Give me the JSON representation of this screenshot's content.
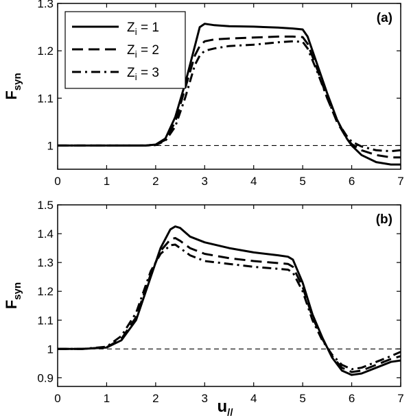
{
  "chart_data": [
    {
      "type": "line",
      "panel_label": "(a)",
      "ylabel": "F",
      "ylabel_sub": "syn",
      "xlim": [
        0,
        7
      ],
      "ylim": [
        0.95,
        1.3
      ],
      "xticks": [
        0,
        1,
        2,
        3,
        4,
        5,
        6,
        7
      ],
      "yticks": [
        1,
        1.1,
        1.2,
        1.3
      ],
      "ytick_labels": [
        "1",
        "1.1",
        "1.2",
        "1.3"
      ],
      "reference_line": 1,
      "legend": {
        "placement": "top-left",
        "entries": [
          {
            "prefix": "Z",
            "sub": "i",
            "suffix": " = 1",
            "style": "solid"
          },
          {
            "prefix": "Z",
            "sub": "i",
            "suffix": " = 2",
            "style": "dashed"
          },
          {
            "prefix": "Z",
            "sub": "i",
            "suffix": " = 3",
            "style": "dashdot"
          }
        ]
      },
      "series": [
        {
          "style": "solid",
          "x": [
            0,
            1,
            1.8,
            2.0,
            2.2,
            2.4,
            2.6,
            2.8,
            2.9,
            3.0,
            3.2,
            3.5,
            4.0,
            4.5,
            4.8,
            5.0,
            5.1,
            5.3,
            5.5,
            5.7,
            5.9,
            6.0,
            6.2,
            6.5,
            6.8,
            7.0
          ],
          "y": [
            1.0,
            1.0,
            1.0,
            1.002,
            1.015,
            1.06,
            1.13,
            1.21,
            1.25,
            1.257,
            1.254,
            1.252,
            1.251,
            1.249,
            1.247,
            1.245,
            1.23,
            1.17,
            1.11,
            1.055,
            1.015,
            1.0,
            0.98,
            0.965,
            0.96,
            0.96
          ]
        },
        {
          "style": "dashed",
          "x": [
            0,
            1,
            1.8,
            2.0,
            2.2,
            2.4,
            2.6,
            2.8,
            2.9,
            3.0,
            3.2,
            3.5,
            4.0,
            4.5,
            4.8,
            5.0,
            5.1,
            5.3,
            5.5,
            5.7,
            5.9,
            6.0,
            6.2,
            6.5,
            6.8,
            7.0
          ],
          "y": [
            1.0,
            1.0,
            1.0,
            1.002,
            1.012,
            1.05,
            1.12,
            1.19,
            1.21,
            1.22,
            1.224,
            1.226,
            1.228,
            1.23,
            1.23,
            1.229,
            1.215,
            1.16,
            1.1,
            1.05,
            1.015,
            1.003,
            0.99,
            0.98,
            0.975,
            0.975
          ]
        },
        {
          "style": "dashdot",
          "x": [
            0,
            1,
            1.8,
            2.0,
            2.2,
            2.4,
            2.6,
            2.8,
            2.9,
            3.0,
            3.2,
            3.5,
            4.0,
            4.5,
            4.8,
            5.0,
            5.1,
            5.3,
            5.5,
            5.7,
            5.9,
            6.0,
            6.2,
            6.5,
            6.8,
            7.0
          ],
          "y": [
            1.0,
            1.0,
            1.0,
            1.001,
            1.01,
            1.04,
            1.1,
            1.17,
            1.19,
            1.2,
            1.205,
            1.21,
            1.213,
            1.218,
            1.22,
            1.219,
            1.205,
            1.155,
            1.1,
            1.052,
            1.02,
            1.008,
            0.998,
            0.99,
            0.988,
            0.99
          ]
        }
      ]
    },
    {
      "type": "line",
      "panel_label": "(b)",
      "ylabel": "F",
      "ylabel_sub": "syn",
      "xlabel": "u",
      "xlabel_sub": "//",
      "xlim": [
        0,
        7
      ],
      "ylim": [
        0.87,
        1.5
      ],
      "xticks": [
        0,
        1,
        2,
        3,
        4,
        5,
        6,
        7
      ],
      "yticks": [
        0.9,
        1,
        1.1,
        1.2,
        1.3,
        1.4,
        1.5
      ],
      "ytick_labels": [
        "0.9",
        "1",
        "1.1",
        "1.2",
        "1.3",
        "1.4",
        "1.5"
      ],
      "reference_line": 1,
      "series": [
        {
          "style": "solid",
          "x": [
            0,
            0.5,
            1.0,
            1.3,
            1.6,
            1.9,
            2.1,
            2.3,
            2.4,
            2.5,
            2.7,
            3.0,
            3.5,
            4.0,
            4.5,
            4.7,
            4.8,
            5.0,
            5.2,
            5.4,
            5.6,
            5.8,
            6.0,
            6.2,
            6.5,
            6.8,
            7.0
          ],
          "y": [
            1.0,
            1.0,
            1.005,
            1.03,
            1.1,
            1.25,
            1.35,
            1.415,
            1.425,
            1.42,
            1.39,
            1.37,
            1.35,
            1.335,
            1.325,
            1.32,
            1.31,
            1.23,
            1.12,
            1.04,
            0.97,
            0.925,
            0.91,
            0.915,
            0.935,
            0.955,
            0.96
          ]
        },
        {
          "style": "dashed",
          "x": [
            0,
            0.5,
            1.0,
            1.3,
            1.6,
            1.9,
            2.1,
            2.3,
            2.4,
            2.5,
            2.7,
            3.0,
            3.5,
            4.0,
            4.5,
            4.7,
            4.8,
            5.0,
            5.2,
            5.4,
            5.6,
            5.8,
            6.0,
            6.2,
            6.5,
            6.8,
            7.0
          ],
          "y": [
            1.0,
            1.0,
            1.006,
            1.035,
            1.11,
            1.26,
            1.34,
            1.38,
            1.385,
            1.375,
            1.35,
            1.33,
            1.315,
            1.305,
            1.298,
            1.295,
            1.285,
            1.215,
            1.11,
            1.035,
            0.975,
            0.935,
            0.92,
            0.925,
            0.945,
            0.965,
            0.975
          ]
        },
        {
          "style": "dashdot",
          "x": [
            0,
            0.5,
            1.0,
            1.3,
            1.6,
            1.9,
            2.1,
            2.3,
            2.4,
            2.5,
            2.7,
            3.0,
            3.5,
            4.0,
            4.5,
            4.7,
            4.8,
            5.0,
            5.2,
            5.4,
            5.6,
            5.8,
            6.0,
            6.2,
            6.5,
            6.8,
            7.0
          ],
          "y": [
            1.0,
            1.0,
            1.008,
            1.045,
            1.125,
            1.27,
            1.33,
            1.36,
            1.362,
            1.35,
            1.325,
            1.305,
            1.295,
            1.285,
            1.278,
            1.275,
            1.265,
            1.2,
            1.1,
            1.03,
            0.98,
            0.945,
            0.93,
            0.935,
            0.955,
            0.975,
            0.99
          ]
        }
      ]
    }
  ]
}
